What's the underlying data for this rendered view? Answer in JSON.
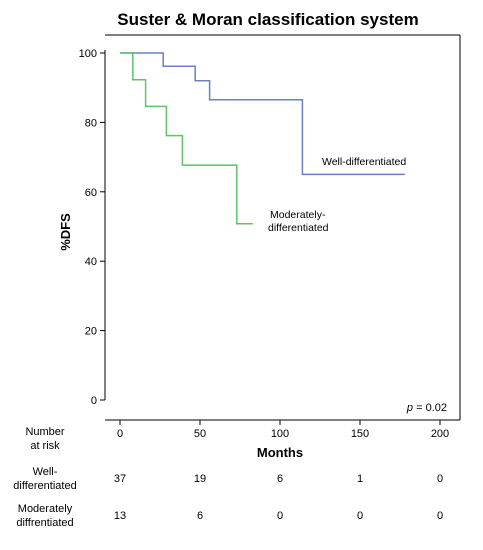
{
  "chart_data": {
    "type": "line",
    "title": "Suster & Moran classification system",
    "xlabel": "Months",
    "ylabel": "%DFS",
    "xlim": [
      0,
      200
    ],
    "ylim": [
      0,
      100
    ],
    "x_ticks": [
      "0",
      "50",
      "100",
      "150",
      "200"
    ],
    "y_ticks": [
      "0",
      "20",
      "40",
      "60",
      "80",
      "100"
    ],
    "grid": false,
    "legend": "none (curves labelled inline)",
    "series": [
      {
        "name": "Well-differentiated",
        "color": "#6a7fc7",
        "step": true,
        "points": [
          [
            0,
            100
          ],
          [
            27,
            100
          ],
          [
            27,
            96.2
          ],
          [
            47,
            96.2
          ],
          [
            47,
            92
          ],
          [
            56,
            92
          ],
          [
            56,
            86.5
          ],
          [
            114,
            86.5
          ],
          [
            114,
            65
          ],
          [
            178,
            65
          ]
        ]
      },
      {
        "name": "Moderately-differentiated",
        "color": "#5dc26a",
        "step": true,
        "points": [
          [
            0,
            100
          ],
          [
            8,
            100
          ],
          [
            8,
            92.3
          ],
          [
            16,
            92.3
          ],
          [
            16,
            84.6
          ],
          [
            29,
            84.6
          ],
          [
            29,
            76.2
          ],
          [
            39,
            76.2
          ],
          [
            39,
            67.7
          ],
          [
            73,
            67.7
          ],
          [
            73,
            50.8
          ],
          [
            83,
            50.8
          ]
        ]
      }
    ],
    "annotations": {
      "well": "Well-differentiated",
      "moderate_line1": "Moderately-",
      "moderate_line2": "differentiated",
      "p_symbol": "p",
      "p_value": " = 0.02"
    },
    "risk_table": {
      "header_line1": "Number",
      "header_line2": "at risk",
      "rows": [
        {
          "label_line1": "Well-",
          "label_line2": "differentiated",
          "values": [
            "37",
            "19",
            "6",
            "1",
            "0"
          ]
        },
        {
          "label_line1": "Moderately",
          "label_line2": "diffrentiated",
          "values": [
            "13",
            "6",
            "0",
            "0",
            "0"
          ]
        }
      ]
    }
  }
}
